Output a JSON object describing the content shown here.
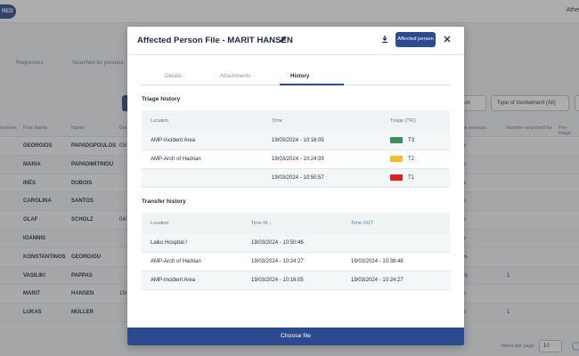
{
  "background": {
    "status_pill": "RED",
    "user_label": "Athe",
    "subtabs": [
      "Requesters",
      "Searched for persons"
    ],
    "filters": {
      "involvement_label": "Type of involvement (All)",
      "other_select": "ation"
    },
    "table_headers": [
      "number",
      "First Name",
      "Name",
      "Dat",
      "aft care services",
      "Number searched for",
      "Pre-triage"
    ],
    "rows": [
      {
        "first": "GEORGIOS",
        "last": "PAPADOPOULOS",
        "date": "03/",
        "care": "No",
        "num": ""
      },
      {
        "first": "MARIA",
        "last": "PAPADIMITRIOU",
        "date": "",
        "care": "No",
        "num": ""
      },
      {
        "first": "INÈS",
        "last": "DUBOIS",
        "date": "",
        "care": "No",
        "num": ""
      },
      {
        "first": "CAROLINA",
        "last": "SANTOS",
        "date": "",
        "care": "No",
        "num": ""
      },
      {
        "first": "OLAF",
        "last": "SCHOLZ",
        "date": "04/",
        "care": "No",
        "num": ""
      },
      {
        "first": "IOANNIS",
        "last": "",
        "date": "",
        "care": "No",
        "num": ""
      },
      {
        "first": "KONSTANTINOS",
        "last": "GEORGIOU",
        "date": "",
        "care": "Yes",
        "num": ""
      },
      {
        "first": "VASILIKI",
        "last": "PAPPAS",
        "date": "",
        "care": "Yes",
        "num": "1"
      },
      {
        "first": "MARIT",
        "last": "HANSEN",
        "date": "15/",
        "care": "No",
        "num": ""
      },
      {
        "first": "LUKAS",
        "last": "MÜLLER",
        "date": "",
        "care": "No",
        "num": "1"
      }
    ],
    "pager": {
      "label": "Items per page:",
      "value": "10"
    }
  },
  "modal": {
    "title": "Affected Person File - MARIT HANSEN",
    "affected_button": "Affected person",
    "tabs": [
      "Details",
      "Attachments",
      "History"
    ],
    "active_tab": "History",
    "triage": {
      "heading": "Triage history",
      "columns": [
        "Location",
        "Time",
        "Triage (TRI)"
      ],
      "rows": [
        {
          "location": "AMP-Incident Area",
          "time": "19/03/2024 - 10:16:05",
          "level": "T3",
          "color": "#3f8a5e"
        },
        {
          "location": "AMP-Arch of Hadrian",
          "time": "19/03/2024 - 10:24:39",
          "level": "T2",
          "color": "#f2bd2a"
        },
        {
          "location": "",
          "time": "19/03/2024 - 10:50:57",
          "level": "T1",
          "color": "#e02020"
        }
      ]
    },
    "transfer": {
      "heading": "Transfer history",
      "columns": [
        "Location",
        "Time IN ↓",
        "Time OUT"
      ],
      "rows": [
        {
          "location": "Laiko Hospital /",
          "time_in": "19/03/2024 - 10:50:46",
          "time_out": ""
        },
        {
          "location": "AMP-Arch of Hadrian",
          "time_in": "19/03/2024 - 10:24:27",
          "time_out": "19/03/2024 - 10:38:48"
        },
        {
          "location": "AMP-Incident Area",
          "time_in": "19/03/2024 - 10:16:05",
          "time_out": "19/03/2024 - 10:24:27"
        }
      ]
    },
    "choose_file": "Choose file"
  },
  "icons": {
    "edit": "pencil-icon",
    "download": "download-icon",
    "close": "close-icon"
  },
  "colors": {
    "primary": "#2b4a8f",
    "overlay": "rgba(60,60,60,0.42)"
  }
}
